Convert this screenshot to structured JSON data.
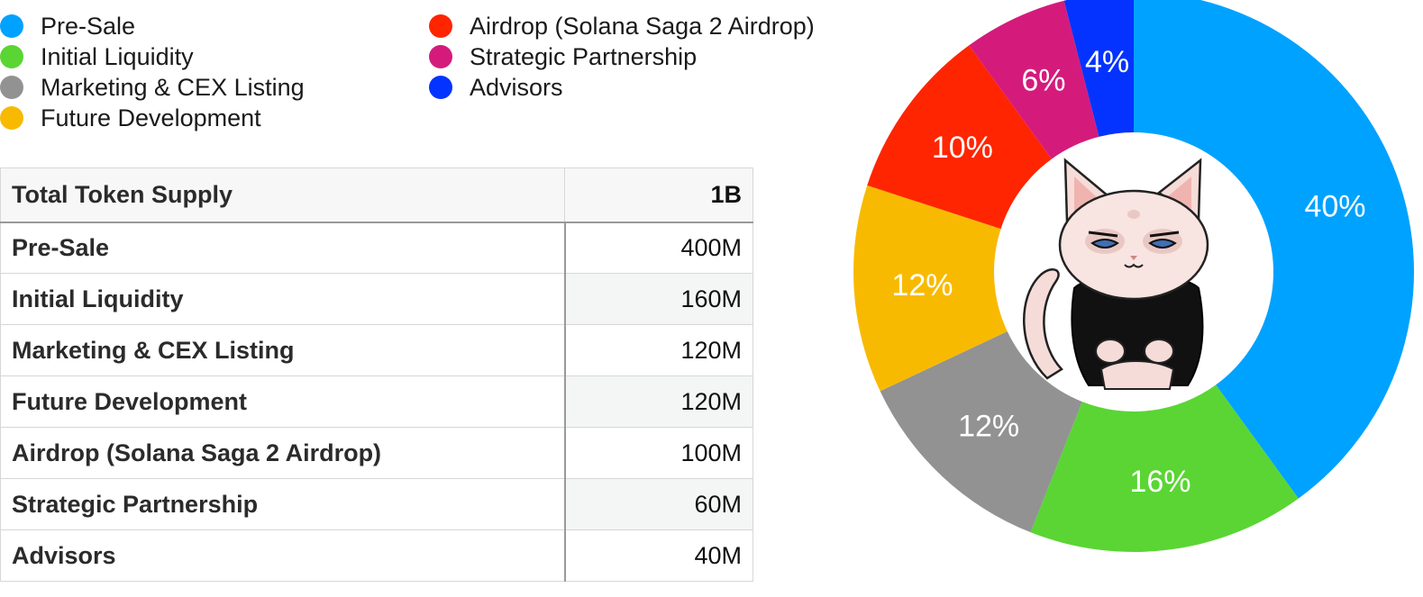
{
  "legend": {
    "items": [
      {
        "label": "Pre-Sale",
        "color": "#00a2ff"
      },
      {
        "label": "Initial Liquidity",
        "color": "#5ad534"
      },
      {
        "label": "Marketing & CEX Listing",
        "color": "#929292"
      },
      {
        "label": "Future Development",
        "color": "#f8ba00"
      },
      {
        "label": "Airdrop (Solana Saga 2 Airdrop)",
        "color": "#ff2500"
      },
      {
        "label": "Strategic Partnership",
        "color": "#d41b7c"
      },
      {
        "label": "Advisors",
        "color": "#0433ff"
      }
    ]
  },
  "table": {
    "header": {
      "name": "Total Token Supply",
      "value": "1B"
    },
    "rows": [
      {
        "name": "Pre-Sale",
        "value": "400M"
      },
      {
        "name": "Initial Liquidity",
        "value": "160M"
      },
      {
        "name": "Marketing & CEX Listing",
        "value": "120M"
      },
      {
        "name": "Future Development",
        "value": "120M"
      },
      {
        "name": "Airdrop (Solana Saga 2 Airdrop)",
        "value": "100M"
      },
      {
        "name": "Strategic Partnership",
        "value": "60M"
      },
      {
        "name": "Advisors",
        "value": "40M"
      }
    ]
  },
  "chart_data": {
    "type": "pie",
    "variant": "donut",
    "categories": [
      "Pre-Sale",
      "Initial Liquidity",
      "Marketing & CEX Listing",
      "Future Development",
      "Airdrop (Solana Saga 2 Airdrop)",
      "Strategic Partnership",
      "Advisors"
    ],
    "values": [
      40,
      16,
      12,
      12,
      10,
      6,
      4
    ],
    "labels": [
      "40%",
      "16%",
      "12%",
      "12%",
      "10%",
      "6%",
      "4%"
    ],
    "colors": [
      "#00a2ff",
      "#5ad534",
      "#929292",
      "#f8ba00",
      "#ff2500",
      "#d41b7c",
      "#0433ff"
    ],
    "start": "top",
    "direction": "clockwise",
    "center_image": "cat-mascot-illustration"
  }
}
